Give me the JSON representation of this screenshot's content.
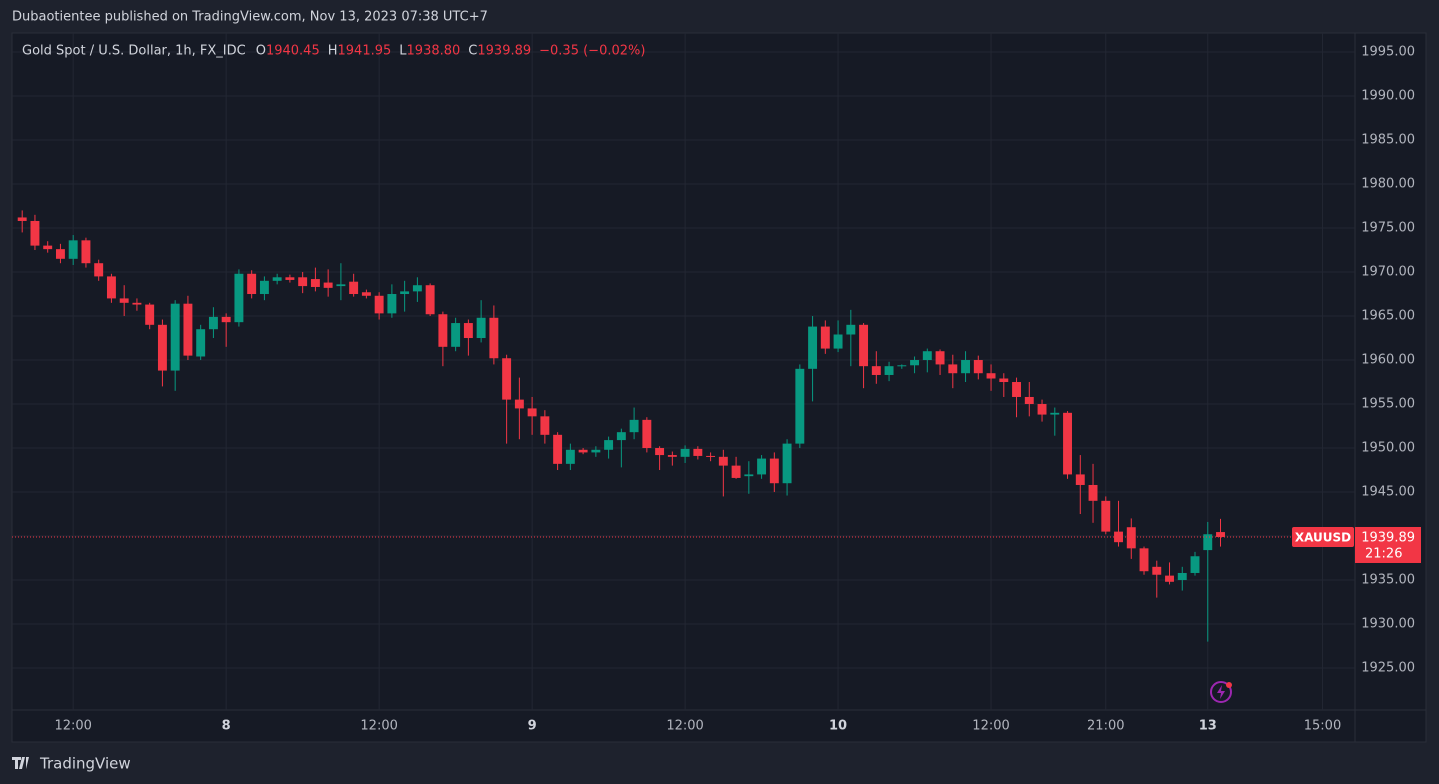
{
  "header": {
    "title": "Dubaotientee published on TradingView.com, Nov 13, 2023 07:38 UTC+7"
  },
  "footer": {
    "brand": "TradingView"
  },
  "chart_data": {
    "type": "candlestick",
    "legend": {
      "symbol": "Gold Spot / U.S. Dollar, 1h, FX_IDC",
      "ohlc": [
        {
          "label": "O",
          "value": "1940.45"
        },
        {
          "label": "H",
          "value": "1941.95"
        },
        {
          "label": "L",
          "value": "1938.80"
        },
        {
          "label": "C",
          "value": "1939.89"
        }
      ],
      "change": "−0.35 (−0.02%)"
    },
    "last_price": {
      "symbol": "XAUUSD",
      "value": "1939.89",
      "countdown": "21:26"
    },
    "up_color": "#089981",
    "down_color": "#f23645",
    "xlim": [
      -0.8,
      104.55
    ],
    "xticks": [
      {
        "value": 4,
        "label": "12:00"
      },
      {
        "value": 16,
        "label": "8"
      },
      {
        "value": 28,
        "label": "12:00"
      },
      {
        "value": 40,
        "label": "9"
      },
      {
        "value": 52,
        "label": "12:00"
      },
      {
        "value": 64,
        "label": "10"
      },
      {
        "value": 76,
        "label": "12:00"
      },
      {
        "value": 85,
        "label": "21:00"
      },
      {
        "value": 93,
        "label": "13"
      },
      {
        "value": 102,
        "label": "15:00"
      }
    ],
    "ylim": [
      1920.23,
      1997.16
    ],
    "yticks": [
      {
        "value": 1925,
        "label": "1925.00"
      },
      {
        "value": 1930,
        "label": "1930.00"
      },
      {
        "value": 1935,
        "label": "1935.00"
      },
      {
        "value": 1940,
        "label": "1940.00"
      },
      {
        "value": 1945,
        "label": "1945.00"
      },
      {
        "value": 1950,
        "label": "1950.00"
      },
      {
        "value": 1955,
        "label": "1955.00"
      },
      {
        "value": 1960,
        "label": "1960.00"
      },
      {
        "value": 1965,
        "label": "1965.00"
      },
      {
        "value": 1970,
        "label": "1970.00"
      },
      {
        "value": 1975,
        "label": "1975.00"
      },
      {
        "value": 1980,
        "label": "1980.00"
      },
      {
        "value": 1985,
        "label": "1985.00"
      },
      {
        "value": 1990,
        "label": "1990.00"
      },
      {
        "value": 1995,
        "label": "1995.00"
      }
    ],
    "grid": true,
    "open": [
      1976.2,
      1975.8,
      1973,
      1972.6,
      1971.5,
      1973.6,
      1971,
      1969.5,
      1967,
      1966.5,
      1966.3,
      1964,
      1958.8,
      1966.4,
      1960.4,
      1963.5,
      1964.9,
      1964.3,
      1969.8,
      1967.5,
      1969,
      1969.4,
      1969.4,
      1969.2,
      1968.8,
      1968.4,
      1968.9,
      1967.7,
      1967.3,
      1965.3,
      1967.5,
      1967.8,
      1968.5,
      1965.2,
      1961.5,
      1964.2,
      1962.5,
      1964.8,
      1960.2,
      1955.5,
      1954.5,
      1953.6,
      1951.5,
      1948.2,
      1949.8,
      1949.5,
      1949.8,
      1950.9,
      1951.8,
      1953.2,
      1950,
      1949.2,
      1949,
      1949.9,
      1949.1,
      1949,
      1948,
      1946.8,
      1947,
      1948.8,
      1946,
      1950.5,
      1959,
      1963.8,
      1961.3,
      1962.9,
      1964,
      1959.3,
      1958.3,
      1959.3,
      1959.4,
      1960,
      1961,
      1959.5,
      1958.5,
      1960,
      1958.5,
      1957.9,
      1957.5,
      1955.8,
      1955,
      1953.8,
      1954,
      1947,
      1945.8,
      1944,
      1940.5,
      1941,
      1938.6,
      1936.5,
      1935.5,
      1935,
      1935.8,
      1938.4,
      1940.45
    ],
    "high": [
      1977,
      1976.5,
      1973.5,
      1973.2,
      1974.2,
      1973.9,
      1971.4,
      1969.8,
      1968.5,
      1967,
      1966.5,
      1964.6,
      1966.8,
      1967.3,
      1964,
      1966,
      1965.3,
      1970.3,
      1970.2,
      1969.5,
      1969.8,
      1969.7,
      1970,
      1970.5,
      1970.3,
      1971,
      1969.8,
      1968,
      1967.7,
      1968.6,
      1969,
      1969.4,
      1968.7,
      1965.5,
      1964.8,
      1964.6,
      1966.8,
      1966.2,
      1960.6,
      1958,
      1955.8,
      1954.3,
      1951.8,
      1950.5,
      1950,
      1950.2,
      1951.3,
      1952.2,
      1954.6,
      1953.5,
      1950.2,
      1949.6,
      1950.3,
      1950.2,
      1949.5,
      1949.8,
      1949,
      1948.5,
      1949.2,
      1949.5,
      1951,
      1959.5,
      1965,
      1964.5,
      1964.5,
      1965.7,
      1964.2,
      1961,
      1959.8,
      1959.5,
      1960.4,
      1961.3,
      1961.2,
      1960.6,
      1961,
      1960.5,
      1959.5,
      1958.5,
      1958,
      1957.5,
      1955.5,
      1954.6,
      1954.2,
      1949.2,
      1948.2,
      1944.5,
      1944,
      1942,
      1938.8,
      1937.2,
      1937,
      1936.5,
      1938.2,
      1941.6,
      1941.95
    ],
    "low": [
      1974.5,
      1972.5,
      1972.2,
      1971,
      1970.8,
      1970.5,
      1969,
      1966.5,
      1965,
      1965.6,
      1963.5,
      1957,
      1956.5,
      1960,
      1960,
      1962.5,
      1961.5,
      1963.8,
      1967,
      1966.8,
      1968.6,
      1968.8,
      1967.6,
      1967.8,
      1967.2,
      1966.8,
      1967.2,
      1967,
      1964.6,
      1964.8,
      1965.5,
      1966.6,
      1965,
      1959.3,
      1961,
      1960.5,
      1962,
      1959.5,
      1950.5,
      1951,
      1951.5,
      1950.5,
      1947.5,
      1947.5,
      1949.3,
      1949,
      1948.8,
      1947.8,
      1951,
      1949.5,
      1947.5,
      1948,
      1948.3,
      1948.7,
      1948.5,
      1944.5,
      1946.5,
      1944.8,
      1946.5,
      1945,
      1944.6,
      1950,
      1955.3,
      1960.7,
      1960.9,
      1959.3,
      1956.8,
      1957.3,
      1957.6,
      1959,
      1958.5,
      1958.6,
      1958.3,
      1956.8,
      1957.5,
      1957.8,
      1956.5,
      1955.8,
      1953.5,
      1953.6,
      1953,
      1951.4,
      1946.5,
      1942.5,
      1941.5,
      1940.2,
      1938.8,
      1937.4,
      1935.6,
      1933,
      1934.5,
      1933.8,
      1935.5,
      1928,
      1938.8
    ],
    "close": [
      1975.8,
      1973,
      1972.6,
      1971.5,
      1973.6,
      1971,
      1969.5,
      1967,
      1966.5,
      1966.3,
      1964,
      1958.8,
      1966.4,
      1960.5,
      1963.5,
      1964.9,
      1964.3,
      1969.8,
      1967.5,
      1969,
      1969.4,
      1969.1,
      1968.4,
      1968.3,
      1968.2,
      1968.6,
      1967.5,
      1967.3,
      1965.3,
      1967.5,
      1967.8,
      1968.5,
      1965.2,
      1961.5,
      1964.2,
      1962.5,
      1964.8,
      1960.2,
      1955.5,
      1954.5,
      1953.6,
      1951.5,
      1948.2,
      1949.8,
      1949.5,
      1949.8,
      1950.9,
      1951.8,
      1953.2,
      1950,
      1949.2,
      1949,
      1949.9,
      1949.1,
      1949,
      1948,
      1946.6,
      1947,
      1948.8,
      1946,
      1950.5,
      1959,
      1963.8,
      1961.3,
      1962.9,
      1964,
      1959.3,
      1958.3,
      1959.3,
      1959.4,
      1960,
      1961,
      1959.5,
      1958.5,
      1960,
      1958.5,
      1957.9,
      1957.5,
      1955.8,
      1955,
      1953.8,
      1954,
      1947,
      1945.8,
      1944,
      1940.5,
      1939.3,
      1938.6,
      1936,
      1935.6,
      1934.8,
      1935.8,
      1937.7,
      1940.2,
      1939.89
    ]
  }
}
